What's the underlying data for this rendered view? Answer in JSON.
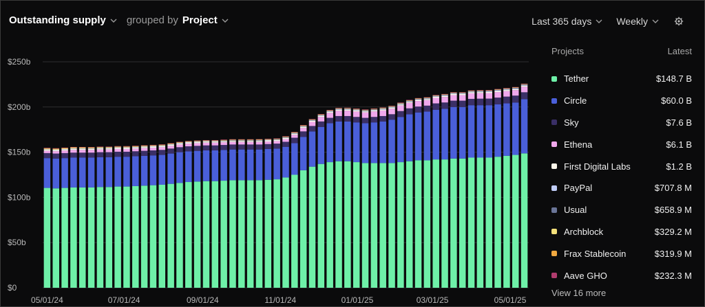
{
  "header": {
    "metric": "Outstanding supply",
    "grouped_by": "grouped by",
    "group": "Project"
  },
  "controls": {
    "range": "Last 365 days",
    "interval": "Weekly"
  },
  "legend": {
    "col_projects": "Projects",
    "col_latest": "Latest",
    "items": [
      {
        "name": "Tether",
        "value": "$148.7 B",
        "color": "#6ef0a8"
      },
      {
        "name": "Circle",
        "value": "$60.0 B",
        "color": "#4a5fd9"
      },
      {
        "name": "Sky",
        "value": "$7.6 B",
        "color": "#3a2f66"
      },
      {
        "name": "Ethena",
        "value": "$6.1 B",
        "color": "#f0a8ec"
      },
      {
        "name": "First Digital Labs",
        "value": "$1.2 B",
        "color": "#fbf7ea"
      },
      {
        "name": "PayPal",
        "value": "$707.8 M",
        "color": "#c0cdf8"
      },
      {
        "name": "Usual",
        "value": "$658.9 M",
        "color": "#6a7598"
      },
      {
        "name": "Archblock",
        "value": "$329.2 M",
        "color": "#f4e07a"
      },
      {
        "name": "Frax Stablecoin",
        "value": "$319.9 M",
        "color": "#f0a840"
      },
      {
        "name": "Aave GHO",
        "value": "$232.3 M",
        "color": "#b03c6e"
      }
    ],
    "view_more": "View 16 more"
  },
  "chart_data": {
    "type": "bar",
    "stacked": true,
    "ylim": [
      0,
      250
    ],
    "yticks": [
      0,
      50,
      100,
      150,
      200,
      250
    ],
    "ytick_labels": [
      "$0",
      "$50b",
      "$100b",
      "$150b",
      "$200b",
      "$250b"
    ],
    "xtick_labels": [
      "05/01/24",
      "07/01/24",
      "09/01/24",
      "11/01/24",
      "01/01/25",
      "03/01/25",
      "05/01/25"
    ],
    "xtick_positions": [
      0,
      8.7,
      17.6,
      26.4,
      35.1,
      43.6,
      52.4
    ],
    "grid": true,
    "series": [
      {
        "name": "Tether",
        "color": "#6ef0a8",
        "values": [
          110.5,
          110,
          110.5,
          111,
          111,
          111,
          111.5,
          111.5,
          112,
          112,
          112.5,
          113,
          113.5,
          114,
          115,
          116,
          117,
          117.5,
          118,
          118,
          118.5,
          119,
          119,
          119,
          119,
          119.5,
          120,
          122,
          125,
          130,
          134,
          137,
          139,
          140,
          140,
          139,
          138,
          138,
          138,
          138,
          139,
          140,
          141,
          141,
          142,
          142,
          143,
          143,
          144,
          144,
          144,
          145,
          146,
          147,
          148.7
        ]
      },
      {
        "name": "Circle",
        "color": "#4a5fd9",
        "values": [
          33,
          33,
          33,
          33,
          33,
          33,
          33,
          33,
          33,
          33,
          33,
          33,
          33,
          33,
          33.5,
          34,
          34,
          34,
          34,
          34,
          34,
          34,
          34,
          34,
          34,
          34,
          34,
          34,
          35,
          37,
          39,
          41,
          43,
          44,
          44,
          44,
          44,
          45,
          46,
          48,
          50,
          52,
          53,
          54,
          55,
          56,
          57,
          57,
          58,
          58,
          58,
          58,
          58,
          58,
          60
        ]
      },
      {
        "name": "Sky",
        "color": "#3a2f66",
        "values": [
          5.5,
          5.5,
          5.5,
          5.5,
          5.5,
          5.5,
          5.5,
          5.5,
          5.5,
          5.5,
          5.5,
          5.5,
          5.5,
          5.5,
          5.5,
          5.5,
          5.5,
          5.5,
          5.5,
          5.5,
          5.5,
          5.5,
          5.5,
          5.5,
          5.5,
          5.5,
          5.5,
          5.5,
          6,
          6,
          6,
          6,
          6,
          6,
          6,
          6,
          6,
          6,
          6,
          6,
          6.5,
          6.5,
          6.5,
          6.5,
          7,
          7,
          7,
          7,
          7,
          7.2,
          7.3,
          7.4,
          7.5,
          7.6,
          7.6
        ]
      },
      {
        "name": "Ethena",
        "color": "#f0a8ec",
        "values": [
          2.5,
          2.6,
          2.8,
          3,
          3,
          3,
          3,
          3,
          3,
          3,
          3,
          3,
          3,
          3,
          3,
          3,
          3,
          3,
          3,
          3,
          2.9,
          2.8,
          2.8,
          2.8,
          2.8,
          2.8,
          2.8,
          3,
          3.2,
          3.8,
          4.5,
          5,
          5.5,
          5.8,
          5.9,
          6,
          6,
          6.1,
          6.1,
          6.1,
          6.1,
          6.1,
          6.1,
          6.1,
          6.1,
          6.1,
          6.1,
          6.1,
          6.1,
          6.1,
          6.1,
          6.1,
          6.1,
          6.1,
          6.1
        ]
      },
      {
        "name": "First Digital Labs",
        "color": "#fbf7ea",
        "values": [
          1.2,
          1.2,
          1.2,
          1.2,
          1.2,
          1.2,
          1.2,
          1.2,
          1.2,
          1.2,
          1.2,
          1.2,
          1.2,
          1.2,
          1.2,
          1.2,
          1.2,
          1.2,
          1.2,
          1.2,
          1.2,
          1.2,
          1.2,
          1.2,
          1.2,
          1.2,
          1.2,
          1.2,
          1.2,
          1.2,
          1.2,
          1.2,
          1.2,
          1.2,
          1.2,
          1.2,
          1.2,
          1.2,
          1.2,
          1.2,
          1.2,
          1.2,
          1.2,
          1.2,
          1.2,
          1.2,
          1.2,
          1.2,
          1.2,
          1.2,
          1.2,
          1.2,
          1.2,
          1.2,
          1.2
        ]
      },
      {
        "name": "PayPal",
        "color": "#c0cdf8",
        "values": [
          0.5,
          0.5,
          0.5,
          0.5,
          0.5,
          0.5,
          0.6,
          0.6,
          0.6,
          0.6,
          0.6,
          0.6,
          0.6,
          0.6,
          0.6,
          0.6,
          0.6,
          0.6,
          0.6,
          0.6,
          0.6,
          0.6,
          0.6,
          0.6,
          0.6,
          0.6,
          0.6,
          0.6,
          0.6,
          0.6,
          0.6,
          0.6,
          0.6,
          0.6,
          0.6,
          0.6,
          0.6,
          0.6,
          0.6,
          0.6,
          0.6,
          0.6,
          0.6,
          0.6,
          0.6,
          0.7,
          0.7,
          0.7,
          0.7,
          0.7,
          0.7,
          0.7,
          0.7,
          0.7,
          0.7
        ]
      },
      {
        "name": "Usual",
        "color": "#6a7598",
        "values": [
          0,
          0,
          0,
          0,
          0,
          0,
          0,
          0,
          0,
          0,
          0,
          0,
          0,
          0,
          0,
          0,
          0,
          0,
          0,
          0,
          0.1,
          0.1,
          0.1,
          0.1,
          0.2,
          0.2,
          0.2,
          0.3,
          0.3,
          0.3,
          0.4,
          0.4,
          0.4,
          0.5,
          0.5,
          0.5,
          0.5,
          0.5,
          0.5,
          0.5,
          0.6,
          0.6,
          0.6,
          0.6,
          0.6,
          0.6,
          0.6,
          0.6,
          0.6,
          0.7,
          0.7,
          0.7,
          0.7,
          0.7,
          0.7
        ]
      },
      {
        "name": "Archblock",
        "color": "#f4e07a",
        "values": [
          0.8,
          0.8,
          0.8,
          0.8,
          0.8,
          0.7,
          0.7,
          0.7,
          0.7,
          0.7,
          0.6,
          0.6,
          0.6,
          0.6,
          0.5,
          0.5,
          0.5,
          0.5,
          0.5,
          0.5,
          0.5,
          0.5,
          0.5,
          0.5,
          0.5,
          0.4,
          0.4,
          0.4,
          0.4,
          0.4,
          0.4,
          0.4,
          0.4,
          0.4,
          0.4,
          0.4,
          0.4,
          0.4,
          0.4,
          0.4,
          0.3,
          0.3,
          0.3,
          0.3,
          0.3,
          0.3,
          0.3,
          0.3,
          0.3,
          0.3,
          0.3,
          0.3,
          0.3,
          0.3,
          0.3
        ]
      },
      {
        "name": "Frax Stablecoin",
        "color": "#f0a840",
        "values": [
          0.7,
          0.7,
          0.7,
          0.7,
          0.7,
          0.7,
          0.6,
          0.6,
          0.6,
          0.6,
          0.6,
          0.6,
          0.6,
          0.6,
          0.6,
          0.6,
          0.5,
          0.5,
          0.5,
          0.5,
          0.5,
          0.5,
          0.5,
          0.5,
          0.5,
          0.5,
          0.5,
          0.5,
          0.5,
          0.5,
          0.4,
          0.4,
          0.4,
          0.4,
          0.4,
          0.4,
          0.4,
          0.4,
          0.4,
          0.4,
          0.4,
          0.4,
          0.4,
          0.3,
          0.3,
          0.3,
          0.3,
          0.3,
          0.3,
          0.3,
          0.3,
          0.3,
          0.3,
          0.3,
          0.3
        ]
      },
      {
        "name": "Aave GHO",
        "color": "#b03c6e",
        "values": [
          0.1,
          0.1,
          0.1,
          0.1,
          0.1,
          0.1,
          0.1,
          0.1,
          0.1,
          0.1,
          0.1,
          0.1,
          0.1,
          0.1,
          0.1,
          0.1,
          0.1,
          0.1,
          0.1,
          0.1,
          0.1,
          0.1,
          0.1,
          0.1,
          0.1,
          0.1,
          0.1,
          0.2,
          0.2,
          0.2,
          0.2,
          0.2,
          0.2,
          0.2,
          0.2,
          0.2,
          0.2,
          0.2,
          0.2,
          0.2,
          0.2,
          0.2,
          0.2,
          0.2,
          0.2,
          0.2,
          0.2,
          0.2,
          0.2,
          0.2,
          0.2,
          0.2,
          0.2,
          0.2,
          0.2
        ]
      }
    ]
  }
}
